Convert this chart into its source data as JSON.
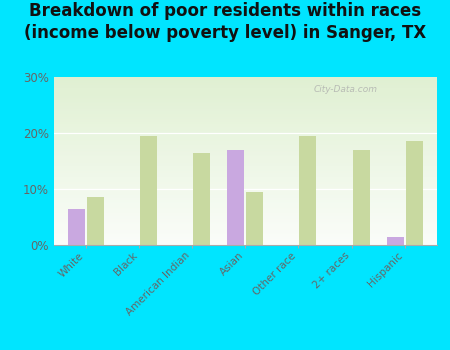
{
  "title": "Breakdown of poor residents within races\n(income below poverty level) in Sanger, TX",
  "categories": [
    "White",
    "Black",
    "American Indian",
    "Asian",
    "Other race",
    "2+ races",
    "Hispanic"
  ],
  "sanger_values": [
    6.5,
    null,
    null,
    17.0,
    null,
    null,
    1.5
  ],
  "texas_values": [
    8.5,
    19.5,
    16.5,
    9.5,
    19.5,
    17.0,
    18.5
  ],
  "sanger_color": "#c9a8e0",
  "texas_color": "#c8d9a0",
  "bar_area_bg_top": "#f0f8e8",
  "bar_area_bg_bottom": "#ffffff",
  "ylim": [
    0,
    30
  ],
  "yticks": [
    0,
    10,
    20,
    30
  ],
  "ytick_labels": [
    "0%",
    "10%",
    "20%",
    "30%"
  ],
  "outer_bg": "#00e5ff",
  "title_fontsize": 12,
  "bar_width": 0.32,
  "legend_marker_size": 12
}
